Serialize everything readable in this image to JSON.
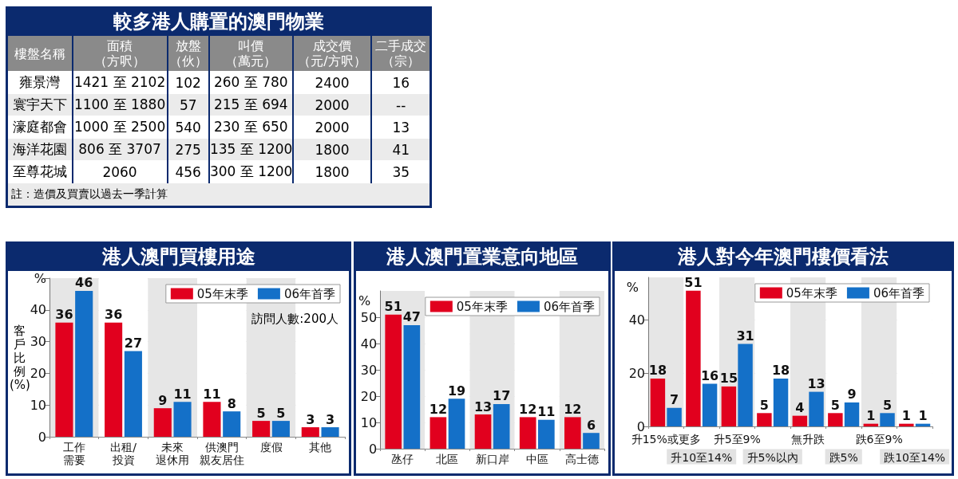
{
  "chart_data": [
    {
      "type": "other",
      "title": "較多港人購置的澳門物業",
      "ylabel": "樓盤名稱",
      "categories": [
        "面積（方呎）",
        "放盤（伙）",
        "叫價（萬元）",
        "成交價（元/方呎）",
        "二手成交（宗）"
      ],
      "y_categories": [
        "雍景灣",
        "寰宇天下",
        "濠庭都會",
        "海洋花園",
        "至尊花城"
      ],
      "cell_labels": [
        [
          "1421 至 2102",
          "102",
          "260 至 780",
          "2400",
          "16"
        ],
        [
          "1100 至 1880",
          "57",
          "215 至 694",
          "2000",
          "--"
        ],
        [
          "1000 至 2500",
          "540",
          "230 至 650",
          "2000",
          "13"
        ],
        [
          "806 至 3707",
          "275",
          "135 至 1200",
          "1800",
          "41"
        ],
        [
          "2060",
          "456",
          "300 至 1200",
          "1800",
          "35"
        ]
      ],
      "annotations": [
        "註：造價及買賣以過去一季計算"
      ]
    },
    {
      "type": "bar",
      "title": "港人澳門買樓用途",
      "ylabel": "客戶比例(%)",
      "categories": [
        "工作需要",
        "出租/投資",
        "未來退休用",
        "供澳門親友居住",
        "度假",
        "其他"
      ],
      "series": [
        {
          "name": "05年末季",
          "color": "#e1001e",
          "values": [
            36,
            36,
            9,
            11,
            5,
            3
          ]
        },
        {
          "name": "06年首季",
          "color": "#1470c8",
          "values": [
            46,
            27,
            11,
            8,
            5,
            3
          ]
        }
      ],
      "ylim": [
        0,
        50
      ],
      "yticks": [
        0,
        10,
        20,
        30,
        40,
        {
          "value": 50,
          "label": "%"
        }
      ],
      "grid": "y",
      "legend": "top right",
      "data_labels": true,
      "annotations": [
        "訪問人數:200人"
      ]
    },
    {
      "type": "bar",
      "title": "港人澳門置業意向地區",
      "ylabel": "%",
      "categories": [
        "氹仔",
        "北區",
        "新口岸",
        "中區",
        "高士德"
      ],
      "series": [
        {
          "name": "05年末季",
          "color": "#e1001e",
          "values": [
            51,
            12,
            13,
            12,
            12
          ]
        },
        {
          "name": "06年首季",
          "color": "#1470c8",
          "values": [
            47,
            19,
            17,
            11,
            6
          ]
        }
      ],
      "ylim": [
        0,
        60
      ],
      "yticks": [
        0,
        10,
        20,
        30,
        40,
        50
      ],
      "grid": "y",
      "legend": "top right",
      "data_labels": true
    },
    {
      "type": "bar",
      "title": "港人對今年澳門樓價看法",
      "ylabel": "%",
      "categories": [
        "升15%或更多",
        "升10至14%",
        "升5至9%",
        "升5%以內",
        "無升跌",
        "跌5%",
        "跌6至9%",
        "跌10至14%"
      ],
      "series": [
        {
          "name": "05年末季",
          "color": "#e1001e",
          "values": [
            18,
            51,
            15,
            5,
            4,
            5,
            1,
            1
          ]
        },
        {
          "name": "06年首季",
          "color": "#1470c8",
          "values": [
            7,
            16,
            31,
            18,
            13,
            9,
            5,
            1
          ]
        }
      ],
      "ylim": [
        0,
        56
      ],
      "yticks": [
        0,
        20,
        40
      ],
      "grid": "y",
      "legend": "top right",
      "data_labels": true
    }
  ]
}
